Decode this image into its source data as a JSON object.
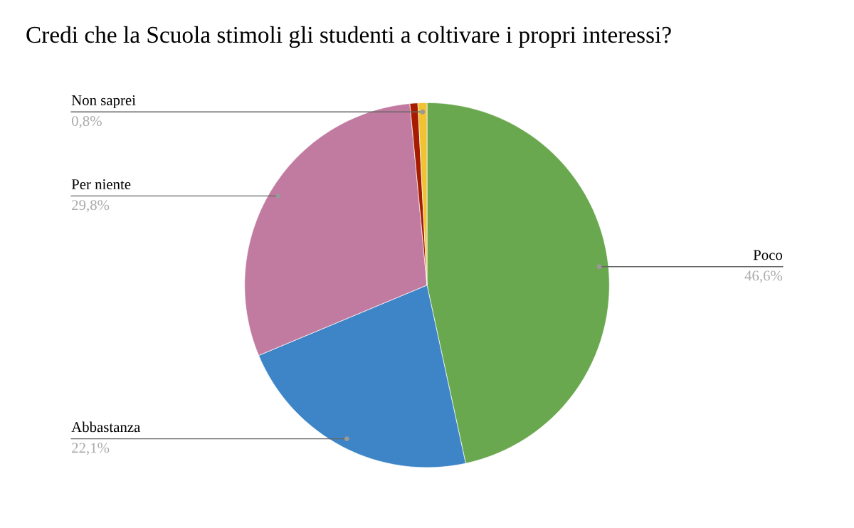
{
  "chart_data": {
    "type": "pie",
    "title": "Credi che la Scuola stimoli gli studenti a coltivare i propri interessi?",
    "categories": [
      "Poco",
      "Abbastanza",
      "Per niente",
      null,
      "Non saprei"
    ],
    "values": [
      46.6,
      22.1,
      29.8,
      0.7,
      0.8
    ],
    "colors": [
      "#6aa84f",
      "#3d85c6",
      "#c27ba0",
      "#a61c00",
      "#f1c232"
    ],
    "value_labels": [
      "46,6%",
      "22,1%",
      "29,8%",
      null,
      "0,8%"
    ],
    "legend": false
  }
}
